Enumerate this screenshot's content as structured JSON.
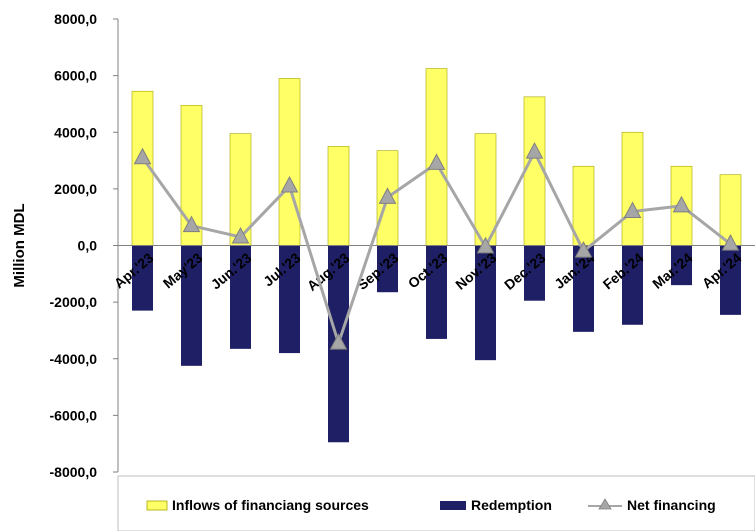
{
  "chart_data": {
    "type": "bar",
    "ylabel": "Million MDL",
    "ylim": [
      -8000,
      8000
    ],
    "yticks": [
      "8000,0",
      "6000,0",
      "4000,0",
      "2000,0",
      "0,0",
      "-2000,0",
      "-4000,0",
      "-6000,0",
      "-8000,0"
    ],
    "categories": [
      "Apr.'23",
      "May'23",
      "Jun.'23",
      "Jul.'23",
      "Aug.'23",
      "Sep.'23",
      "Oct.'23",
      "Nov.'23",
      "Dec.'23",
      "Jan.'24",
      "Feb.'24",
      "Mar.'24",
      "Apr.'24"
    ],
    "series": [
      {
        "name": "Inflows of financiang sources",
        "kind": "bar",
        "color": "#ffff66",
        "values": [
          5450,
          4950,
          3950,
          5900,
          3500,
          3350,
          6250,
          3950,
          5250,
          2800,
          4000,
          2800,
          2500
        ]
      },
      {
        "name": "Redemption",
        "kind": "bar",
        "color": "#1f1f66",
        "values": [
          -2300,
          -4250,
          -3650,
          -3800,
          -6950,
          -1650,
          -3300,
          -4050,
          -1950,
          -3050,
          -2800,
          -1400,
          -2450
        ]
      },
      {
        "name": "Net financing",
        "kind": "line",
        "color": "#a6a6a6",
        "values": [
          3100,
          700,
          300,
          2100,
          -3450,
          1700,
          2900,
          -50,
          3300,
          -200,
          1200,
          1400,
          50
        ]
      }
    ],
    "legend": "bottom",
    "grid": false
  }
}
